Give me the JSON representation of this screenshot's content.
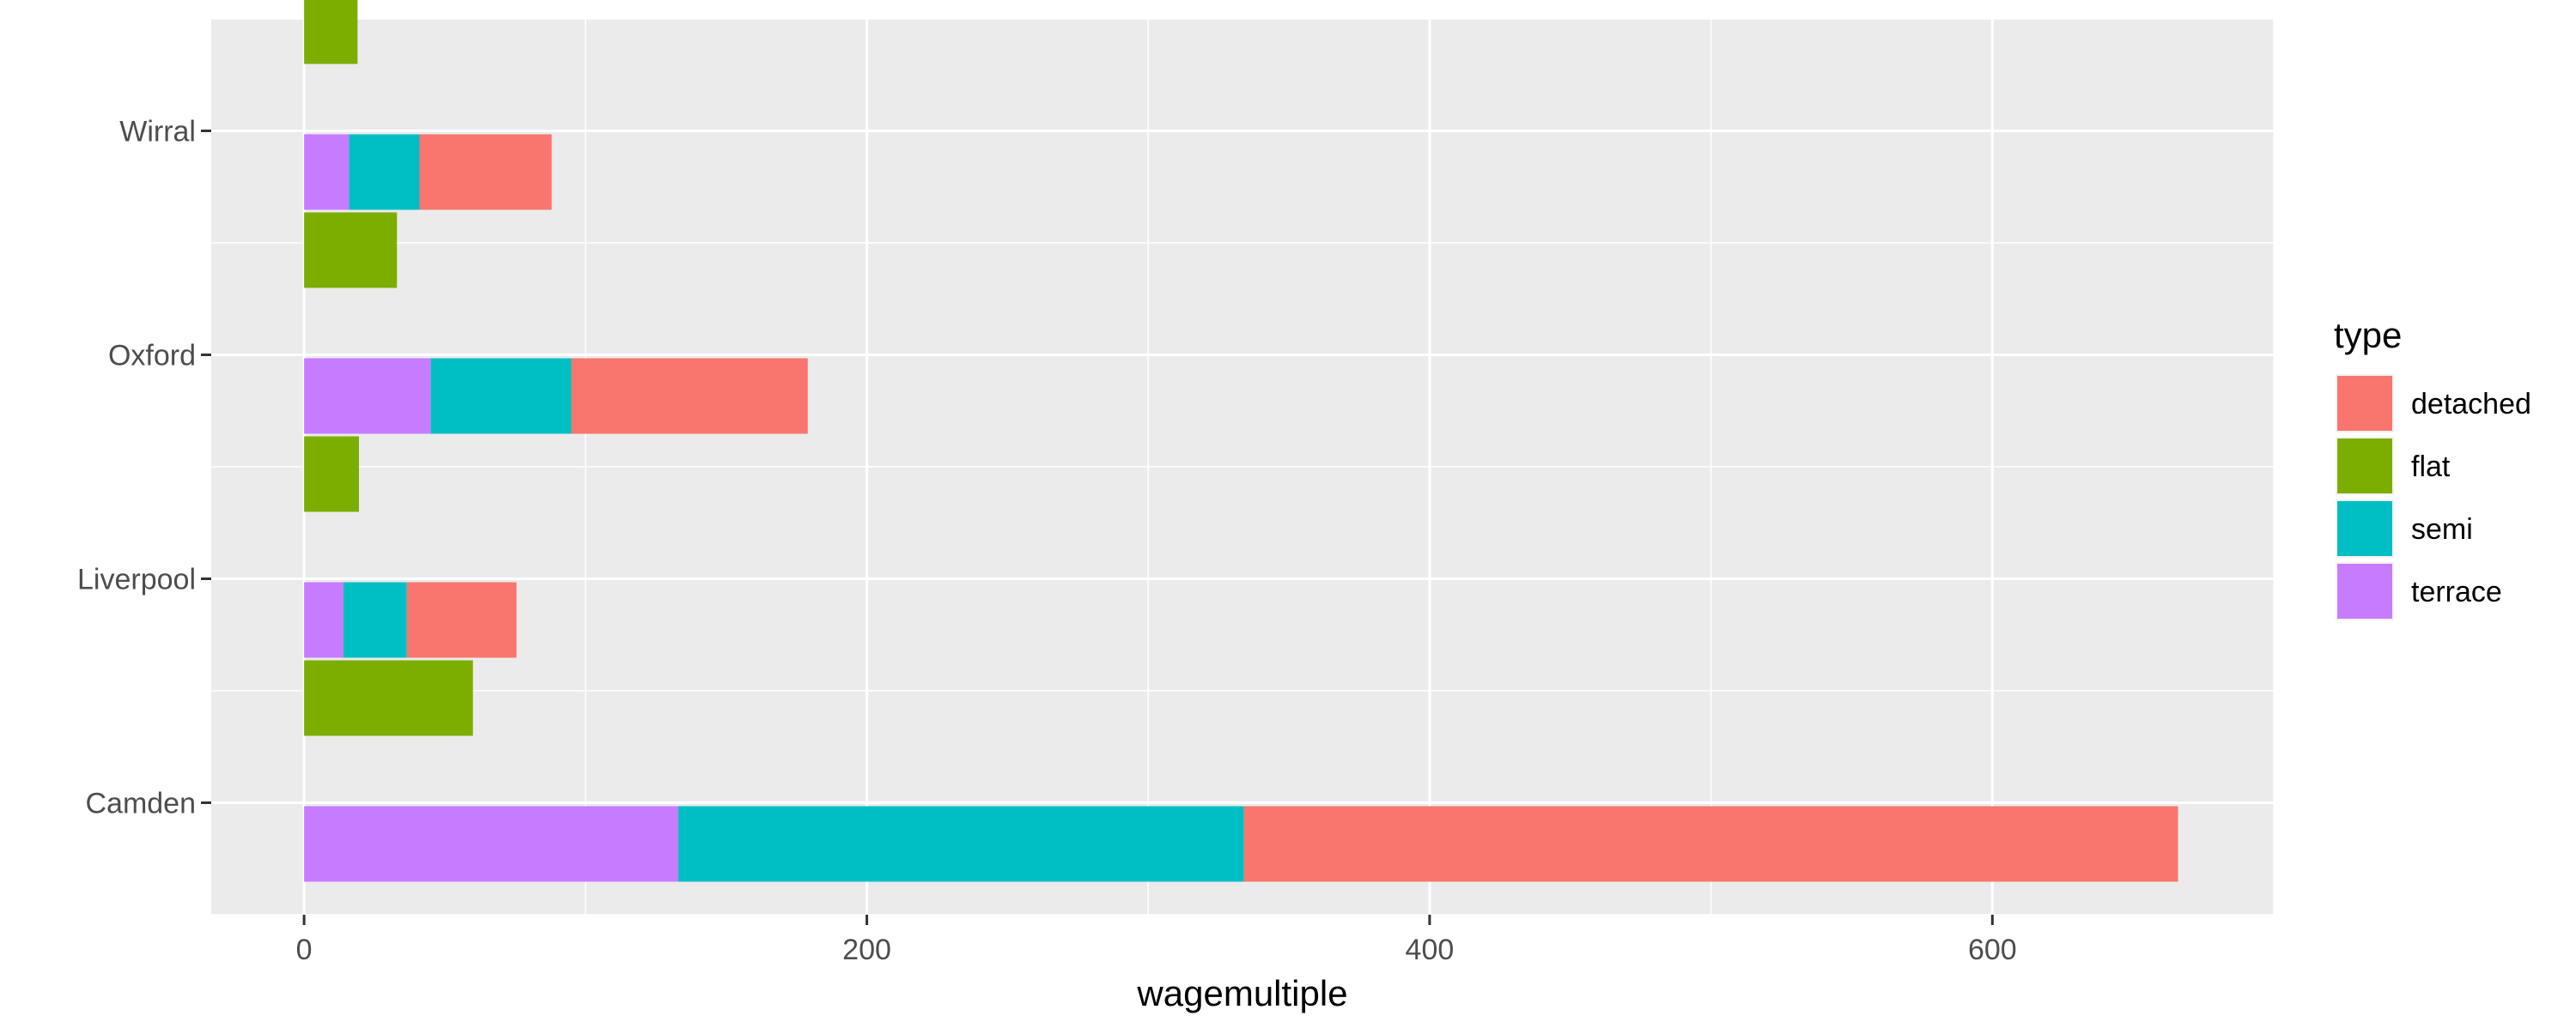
{
  "chart_data": {
    "type": "bar",
    "orientation": "horizontal",
    "stacked": true,
    "categories": [
      "Camden",
      "Liverpool",
      "Oxford",
      "Wirral"
    ],
    "xlabel": "wagemultiple",
    "ylabel": "",
    "xlim": [
      -33,
      700
    ],
    "x_ticks": [
      0,
      200,
      400,
      600
    ],
    "grid": true,
    "legend": {
      "title": "type",
      "position": "right",
      "entries": [
        "detached",
        "flat",
        "semi",
        "terrace"
      ]
    },
    "colors": {
      "detached": "#F8766D",
      "flat": "#7CAE00",
      "semi": "#00BFC4",
      "terrace": "#C77CFF"
    },
    "groups": [
      {
        "category": "Camden",
        "flat": 60,
        "stack": [
          {
            "type": "terrace",
            "value": 133
          },
          {
            "type": "semi",
            "value": 201
          },
          {
            "type": "detached",
            "value": 332
          }
        ]
      },
      {
        "category": "Liverpool",
        "flat": 19.5,
        "stack": [
          {
            "type": "terrace",
            "value": 14
          },
          {
            "type": "semi",
            "value": 22.5
          },
          {
            "type": "detached",
            "value": 39
          }
        ]
      },
      {
        "category": "Oxford",
        "flat": 33,
        "stack": [
          {
            "type": "terrace",
            "value": 45
          },
          {
            "type": "semi",
            "value": 50
          },
          {
            "type": "detached",
            "value": 84
          }
        ]
      },
      {
        "category": "Wirral",
        "flat": 19,
        "stack": [
          {
            "type": "terrace",
            "value": 16
          },
          {
            "type": "semi",
            "value": 25
          },
          {
            "type": "detached",
            "value": 47
          }
        ]
      }
    ]
  }
}
